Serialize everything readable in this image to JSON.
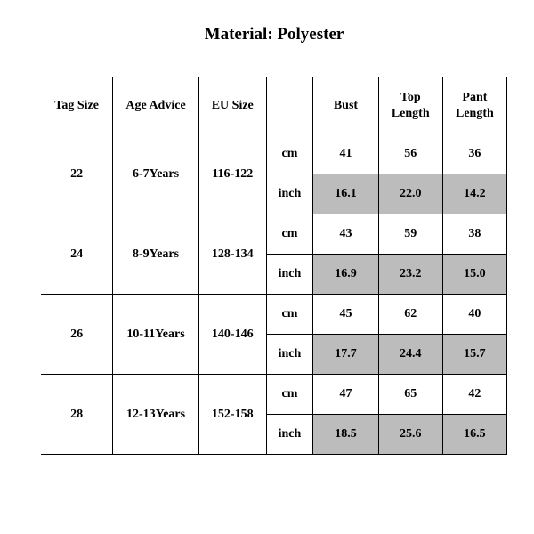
{
  "title": "Material: Polyester",
  "table": {
    "columns": [
      "Tag Size",
      "Age Advice",
      "EU Size",
      "",
      "Bust",
      "Top Length",
      "Pant Length"
    ],
    "unit_labels": {
      "cm": "cm",
      "inch": "inch"
    },
    "rows": [
      {
        "tag": "22",
        "age": "6-7Years",
        "eu": "116-122",
        "cm": {
          "bust": "41",
          "top": "56",
          "pant": "36"
        },
        "inch": {
          "bust": "16.1",
          "top": "22.0",
          "pant": "14.2"
        }
      },
      {
        "tag": "24",
        "age": "8-9Years",
        "eu": "128-134",
        "cm": {
          "bust": "43",
          "top": "59",
          "pant": "38"
        },
        "inch": {
          "bust": "16.9",
          "top": "23.2",
          "pant": "15.0"
        }
      },
      {
        "tag": "26",
        "age": "10-11Years",
        "eu": "140-146",
        "cm": {
          "bust": "45",
          "top": "62",
          "pant": "40"
        },
        "inch": {
          "bust": "17.7",
          "top": "24.4",
          "pant": "15.7"
        }
      },
      {
        "tag": "28",
        "age": "12-13Years",
        "eu": "152-158",
        "cm": {
          "bust": "47",
          "top": "65",
          "pant": "42"
        },
        "inch": {
          "bust": "18.5",
          "top": "25.6",
          "pant": "16.5"
        }
      }
    ],
    "colors": {
      "shaded_bg": "#bcbcbc",
      "border": "#000000",
      "background": "#ffffff",
      "text": "#000000"
    }
  }
}
